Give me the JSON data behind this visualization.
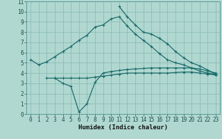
{
  "bg_color": "#b0d8d0",
  "grid_color": "#8cbcb8",
  "line_color": "#1a6b6b",
  "xlabel": "Humidex (Indice chaleur)",
  "xlim": [
    -0.5,
    23.5
  ],
  "ylim": [
    0,
    11
  ],
  "yticks": [
    0,
    1,
    2,
    3,
    4,
    5,
    6,
    7,
    8,
    9,
    10,
    11
  ],
  "line1_x": [
    0,
    1,
    2,
    3,
    4,
    5,
    6,
    7,
    8,
    9,
    10,
    11,
    12,
    13,
    14,
    15,
    16,
    17,
    18,
    19,
    20,
    21,
    22,
    23
  ],
  "line1_y": [
    5.3,
    4.8,
    5.1,
    5.6,
    6.1,
    6.6,
    7.2,
    7.7,
    8.5,
    8.7,
    9.3,
    9.5,
    8.6,
    7.8,
    7.2,
    6.6,
    5.9,
    5.3,
    5.0,
    4.8,
    4.5,
    4.2,
    4.0,
    3.9
  ],
  "line2_x": [
    3,
    4,
    5,
    6,
    7,
    8,
    9,
    10,
    11,
    12,
    13,
    14,
    15,
    16,
    17,
    18,
    19,
    20,
    21,
    22,
    23
  ],
  "line2_y": [
    3.5,
    3.0,
    2.7,
    0.2,
    1.0,
    3.1,
    4.0,
    4.15,
    4.25,
    4.35,
    4.4,
    4.45,
    4.5,
    4.5,
    4.5,
    4.5,
    4.5,
    4.5,
    4.4,
    4.2,
    4.0
  ],
  "line3_x": [
    2,
    3,
    4,
    5,
    6,
    7,
    8,
    9,
    10,
    11,
    12,
    13,
    14,
    15,
    16,
    17,
    18,
    19,
    20,
    21,
    22,
    23
  ],
  "line3_y": [
    3.5,
    3.5,
    3.5,
    3.5,
    3.5,
    3.5,
    3.6,
    3.7,
    3.8,
    3.9,
    4.0,
    4.0,
    4.0,
    4.0,
    4.0,
    4.0,
    4.05,
    4.1,
    4.1,
    4.0,
    3.9,
    3.8
  ],
  "line4_x": [
    11,
    12,
    13,
    14,
    15,
    16,
    17,
    18,
    19,
    20,
    21,
    22,
    23
  ],
  "line4_y": [
    10.5,
    9.5,
    8.7,
    8.0,
    7.8,
    7.4,
    6.85,
    6.1,
    5.5,
    5.0,
    4.7,
    4.3,
    3.9
  ],
  "tick_fontsize": 5.5,
  "label_fontsize": 6.5
}
